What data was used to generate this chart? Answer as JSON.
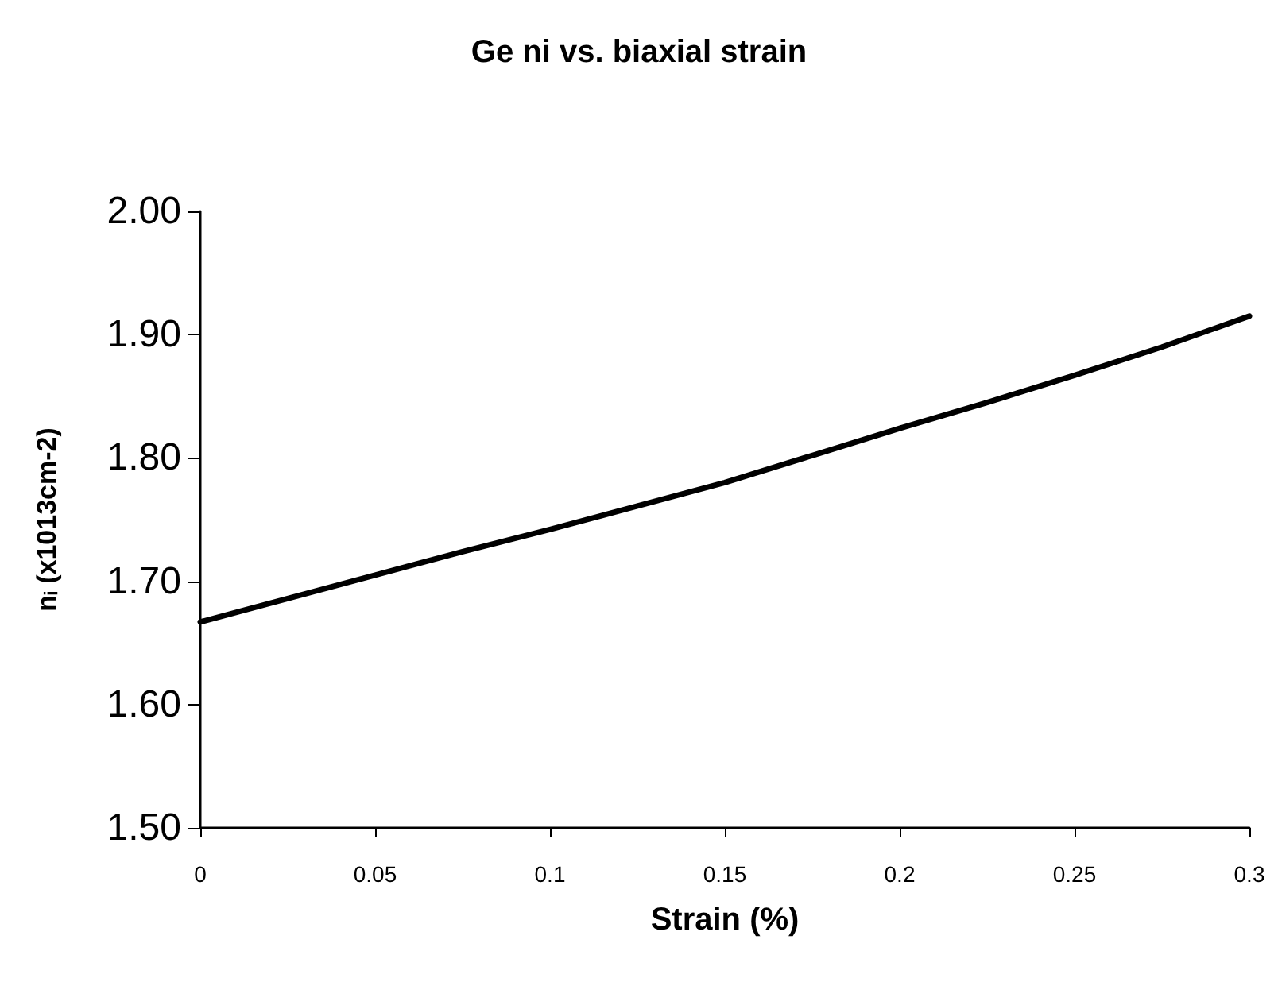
{
  "chart_data": {
    "type": "line",
    "title": "Ge ni vs. biaxial strain",
    "xlabel": "Strain (%)",
    "ylabel": "nᵢ (x1013cm-2)",
    "x": [
      0,
      0.025,
      0.05,
      0.075,
      0.1,
      0.125,
      0.15,
      0.175,
      0.2,
      0.225,
      0.25,
      0.275,
      0.3
    ],
    "series": [
      {
        "color": "#000000",
        "values": [
          1.667,
          1.686,
          1.705,
          1.724,
          1.742,
          1.761,
          1.78,
          1.802,
          1.824,
          1.845,
          1.867,
          1.89,
          1.915
        ]
      }
    ],
    "xlim": [
      0,
      0.3
    ],
    "xticks": [
      0,
      0.05,
      0.1,
      0.15,
      0.2,
      0.25,
      0.3
    ],
    "ylim": [
      1.5,
      2.0
    ],
    "yticks": [
      {
        "value": 1.5,
        "label": "1.50"
      },
      {
        "value": 1.6,
        "label": "1.60"
      },
      {
        "value": 1.7,
        "label": "1.70"
      },
      {
        "value": 1.8,
        "label": "1.80"
      },
      {
        "value": 1.9,
        "label": "1.90"
      },
      {
        "value": 2.0,
        "label": "2.00"
      }
    ],
    "grid": false,
    "marker": "none",
    "line_style": "solid"
  }
}
